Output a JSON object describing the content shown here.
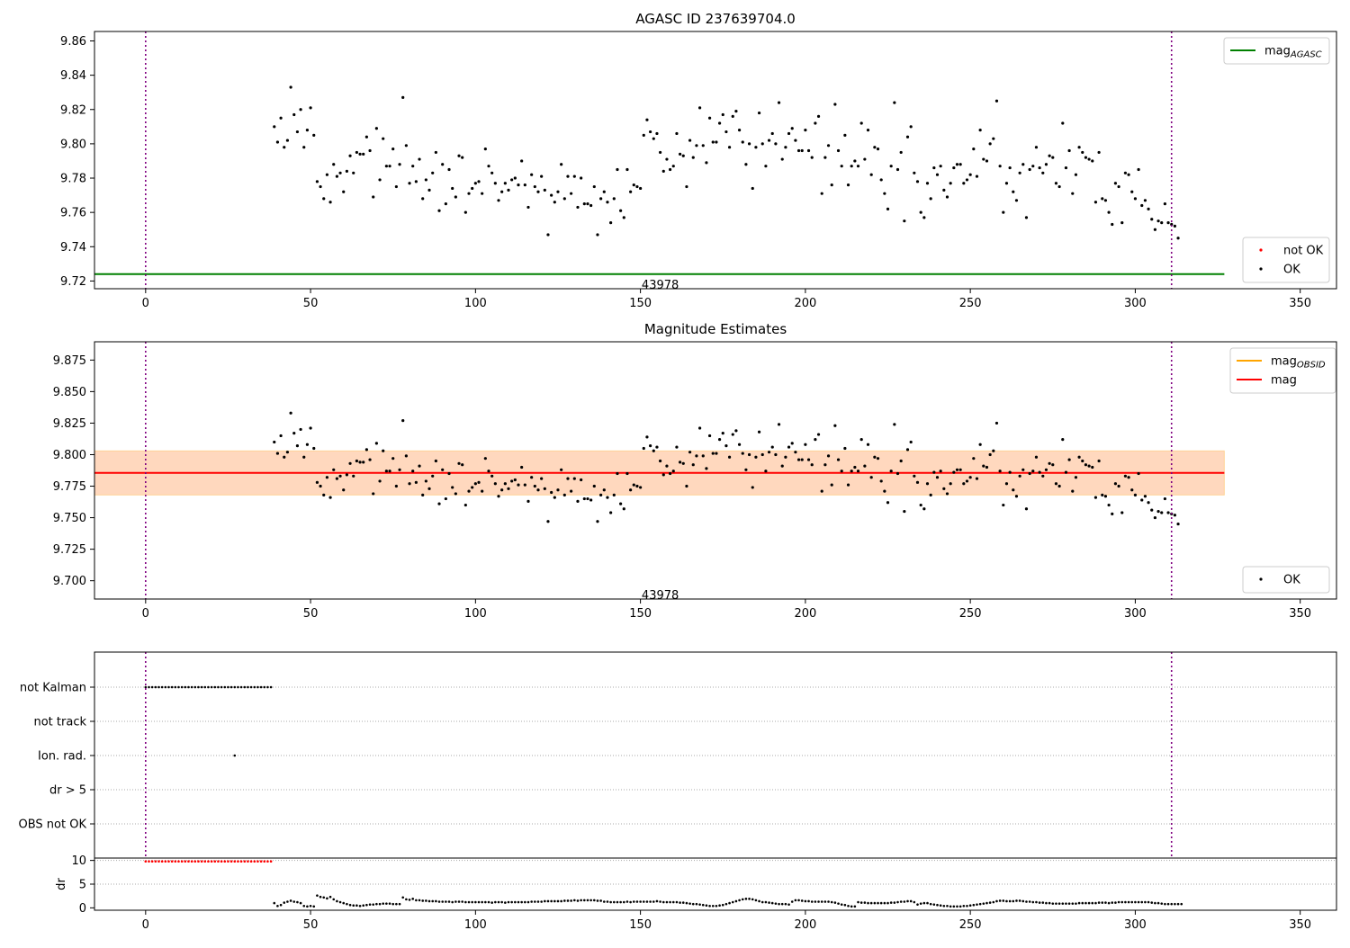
{
  "chart_data": [
    {
      "type": "scatter",
      "title": "AGASC ID 237639704.0",
      "xlim": [
        -15.5,
        361
      ],
      "ylim": [
        9.7155,
        9.8655
      ],
      "x_ticks": [
        0,
        50,
        100,
        150,
        200,
        250,
        300,
        350
      ],
      "y_ticks": [
        9.72,
        9.74,
        9.76,
        9.78,
        9.8,
        9.82,
        9.84,
        9.86
      ],
      "y_tick_decimals": 2,
      "vlines": [
        0,
        311
      ],
      "hlines": [
        {
          "y": 9.724,
          "x_range": [
            -15.5,
            327
          ],
          "color": "#008000"
        }
      ],
      "band": null,
      "annotation": {
        "text": "43978",
        "x": 156,
        "y": 9.7175
      },
      "legends": [
        {
          "position": "top-right",
          "entries": [
            {
              "label": "mag",
              "sub": "AGASC",
              "kind": "line",
              "color": "#008000"
            }
          ]
        },
        {
          "position": "bottom-right",
          "entries": [
            {
              "label": "not OK",
              "kind": "dot",
              "color": "#ff0000"
            },
            {
              "label": "OK",
              "kind": "dot",
              "color": "#000000"
            }
          ]
        }
      ],
      "series": [
        {
          "name": "OK",
          "color": "#000000",
          "x_start": 39,
          "x_end": 311,
          "y": [
            9.81,
            9.801,
            9.815,
            9.798,
            9.802,
            9.833,
            9.817,
            9.807,
            9.82,
            9.798,
            9.808,
            9.821,
            9.805,
            9.778,
            9.775,
            9.768,
            9.782,
            9.766,
            9.788,
            9.781,
            9.783,
            9.772,
            9.784,
            9.793,
            9.783,
            9.795,
            9.794,
            9.794,
            9.804,
            9.796,
            9.769,
            9.809,
            9.779,
            9.803,
            9.787,
            9.787,
            9.797,
            9.775,
            9.788,
            9.827,
            9.799,
            9.777,
            9.787,
            9.778,
            9.791,
            9.768,
            9.779,
            9.773,
            9.783,
            9.795,
            9.761,
            9.788,
            9.765,
            9.785,
            9.774,
            9.769,
            9.793,
            9.792,
            9.76,
            9.771,
            9.774,
            9.777,
            9.778,
            9.771,
            9.797,
            9.787,
            9.783,
            9.777,
            9.767,
            9.772,
            9.777,
            9.773,
            9.779,
            9.78,
            9.776,
            9.79,
            9.776,
            9.763,
            9.782,
            9.775,
            9.772,
            9.781,
            9.773,
            9.747,
            9.77,
            9.766,
            9.772,
            9.788,
            9.768,
            9.781,
            9.771,
            9.781,
            9.763,
            9.78,
            9.765,
            9.765,
            9.764,
            9.775,
            9.747,
            9.768,
            9.772,
            9.766,
            9.754,
            9.768,
            9.785,
            9.761,
            9.757,
            9.785,
            9.772,
            9.776,
            9.775,
            9.774,
            9.805,
            9.814,
            9.807,
            9.803,
            9.806,
            9.795,
            9.784,
            9.791,
            9.785,
            9.787,
            9.806,
            9.794,
            9.793,
            9.775,
            9.802,
            9.792,
            9.799,
            9.821,
            9.799,
            9.789,
            9.815,
            9.801,
            9.801,
            9.812,
            9.817,
            9.807,
            9.798,
            9.816,
            9.819,
            9.808,
            9.801,
            9.788,
            9.8,
            9.774,
            9.798,
            9.818,
            9.8,
            9.787,
            9.802,
            9.806,
            9.8,
            9.824,
            9.791,
            9.798,
            9.806,
            9.809,
            9.802,
            9.796,
            9.796,
            9.808,
            9.796,
            9.792,
            9.812,
            9.816,
            9.771,
            9.792,
            9.799,
            9.776,
            9.823,
            9.796,
            9.787,
            9.805,
            9.776,
            9.787,
            9.79,
            9.787,
            9.812,
            9.791,
            9.808,
            9.782,
            9.798,
            9.797,
            9.779,
            9.771,
            9.762,
            9.787,
            9.824,
            9.785,
            9.795,
            9.755,
            9.804,
            9.81,
            9.783,
            9.778,
            9.76,
            9.757,
            9.777,
            9.768,
            9.786,
            9.782,
            9.787,
            9.773,
            9.769,
            9.777,
            9.786,
            9.788,
            9.788,
            9.777,
            9.779,
            9.782,
            9.797,
            9.781,
            9.808,
            9.791,
            9.79,
            9.8,
            9.803,
            9.825,
            9.787,
            9.76,
            9.777,
            9.786,
            9.772,
            9.767,
            9.783,
            9.788,
            9.757,
            9.785,
            9.787,
            9.798,
            9.786,
            9.783,
            9.788,
            9.793,
            9.792,
            9.777,
            9.775,
            9.812,
            9.786,
            9.796,
            9.771,
            9.782,
            9.798,
            9.795,
            9.792,
            9.791,
            9.79,
            9.766,
            9.795,
            9.768,
            9.767,
            9.76,
            9.753,
            9.777,
            9.775,
            9.754,
            9.783,
            9.782,
            9.772,
            9.768,
            9.785,
            9.764,
            9.767,
            9.762,
            9.756,
            9.75,
            9.755,
            9.754,
            9.765,
            9.754,
            9.753,
            9.752,
            9.745
          ]
        }
      ]
    },
    {
      "type": "scatter",
      "title": "Magnitude Estimates",
      "xlim": [
        -15.5,
        361
      ],
      "ylim": [
        9.6855,
        9.8895
      ],
      "x_ticks": [
        0,
        50,
        100,
        150,
        200,
        250,
        300,
        350
      ],
      "y_ticks": [
        9.7,
        9.725,
        9.75,
        9.775,
        9.8,
        9.825,
        9.85,
        9.875
      ],
      "y_tick_decimals": 3,
      "vlines": [
        0,
        311
      ],
      "hlines": [
        {
          "y": 9.7855,
          "x_range": [
            -15.5,
            327
          ],
          "color": "#ff0000"
        }
      ],
      "band": {
        "y": [
          9.768,
          9.803
        ],
        "x_range": [
          -15.5,
          327
        ]
      },
      "annotation": {
        "text": "43978",
        "x": 156,
        "y": 9.6885
      },
      "legends": [
        {
          "position": "top-right",
          "entries": [
            {
              "label": "mag",
              "sub": "OBSID",
              "kind": "line",
              "color": "#ffa500"
            },
            {
              "label": "mag",
              "kind": "line",
              "color": "#ff0000"
            }
          ]
        },
        {
          "position": "bottom-right",
          "entries": [
            {
              "label": "OK",
              "kind": "dot",
              "color": "#000000"
            }
          ]
        }
      ],
      "series": [
        {
          "name": "OK",
          "color": "#000000",
          "x_start": 39,
          "x_end": 311,
          "y": [
            9.81,
            9.801,
            9.815,
            9.798,
            9.802,
            9.833,
            9.817,
            9.807,
            9.82,
            9.798,
            9.808,
            9.821,
            9.805,
            9.778,
            9.775,
            9.768,
            9.782,
            9.766,
            9.788,
            9.781,
            9.783,
            9.772,
            9.784,
            9.793,
            9.783,
            9.795,
            9.794,
            9.794,
            9.804,
            9.796,
            9.769,
            9.809,
            9.779,
            9.803,
            9.787,
            9.787,
            9.797,
            9.775,
            9.788,
            9.827,
            9.799,
            9.777,
            9.787,
            9.778,
            9.791,
            9.768,
            9.779,
            9.773,
            9.783,
            9.795,
            9.761,
            9.788,
            9.765,
            9.785,
            9.774,
            9.769,
            9.793,
            9.792,
            9.76,
            9.771,
            9.774,
            9.777,
            9.778,
            9.771,
            9.797,
            9.787,
            9.783,
            9.777,
            9.767,
            9.772,
            9.777,
            9.773,
            9.779,
            9.78,
            9.776,
            9.79,
            9.776,
            9.763,
            9.782,
            9.775,
            9.772,
            9.781,
            9.773,
            9.747,
            9.77,
            9.766,
            9.772,
            9.788,
            9.768,
            9.781,
            9.771,
            9.781,
            9.763,
            9.78,
            9.765,
            9.765,
            9.764,
            9.775,
            9.747,
            9.768,
            9.772,
            9.766,
            9.754,
            9.768,
            9.785,
            9.761,
            9.757,
            9.785,
            9.772,
            9.776,
            9.775,
            9.774,
            9.805,
            9.814,
            9.807,
            9.803,
            9.806,
            9.795,
            9.784,
            9.791,
            9.785,
            9.787,
            9.806,
            9.794,
            9.793,
            9.775,
            9.802,
            9.792,
            9.799,
            9.821,
            9.799,
            9.789,
            9.815,
            9.801,
            9.801,
            9.812,
            9.817,
            9.807,
            9.798,
            9.816,
            9.819,
            9.808,
            9.801,
            9.788,
            9.8,
            9.774,
            9.798,
            9.818,
            9.8,
            9.787,
            9.802,
            9.806,
            9.8,
            9.824,
            9.791,
            9.798,
            9.806,
            9.809,
            9.802,
            9.796,
            9.796,
            9.808,
            9.796,
            9.792,
            9.812,
            9.816,
            9.771,
            9.792,
            9.799,
            9.776,
            9.823,
            9.796,
            9.787,
            9.805,
            9.776,
            9.787,
            9.79,
            9.787,
            9.812,
            9.791,
            9.808,
            9.782,
            9.798,
            9.797,
            9.779,
            9.771,
            9.762,
            9.787,
            9.824,
            9.785,
            9.795,
            9.755,
            9.804,
            9.81,
            9.783,
            9.778,
            9.76,
            9.757,
            9.777,
            9.768,
            9.786,
            9.782,
            9.787,
            9.773,
            9.769,
            9.777,
            9.786,
            9.788,
            9.788,
            9.777,
            9.779,
            9.782,
            9.797,
            9.781,
            9.808,
            9.791,
            9.79,
            9.8,
            9.803,
            9.825,
            9.787,
            9.76,
            9.777,
            9.786,
            9.772,
            9.767,
            9.783,
            9.788,
            9.757,
            9.785,
            9.787,
            9.798,
            9.786,
            9.783,
            9.788,
            9.793,
            9.792,
            9.777,
            9.775,
            9.812,
            9.786,
            9.796,
            9.771,
            9.782,
            9.798,
            9.795,
            9.792,
            9.791,
            9.79,
            9.766,
            9.795,
            9.768,
            9.767,
            9.76,
            9.753,
            9.777,
            9.775,
            9.754,
            9.783,
            9.782,
            9.772,
            9.768,
            9.785,
            9.764,
            9.767,
            9.762,
            9.756,
            9.75,
            9.755,
            9.754,
            9.765,
            9.754,
            9.753,
            9.752,
            9.745
          ]
        }
      ]
    },
    {
      "type": "scatter",
      "xlim": [
        -15.5,
        361
      ],
      "x_ticks": [
        0,
        50,
        100,
        150,
        200,
        250,
        300,
        350
      ],
      "vlines": [
        0,
        311
      ],
      "categories": [
        "not Kalman",
        "not track",
        "Ion. rad.",
        "dr > 5",
        "OBS not OK"
      ],
      "flags": [
        {
          "category": "not Kalman",
          "x_start": 0,
          "x_end": 38
        },
        {
          "category": "Ion. rad.",
          "points": [
            27
          ]
        }
      ]
    },
    {
      "type": "scatter",
      "ylabel": "dr",
      "xlim": [
        -15.5,
        361
      ],
      "ylim": [
        -0.5,
        10.5
      ],
      "x_ticks": [
        0,
        50,
        100,
        150,
        200,
        250,
        300,
        350
      ],
      "y_ticks": [
        0,
        5,
        10
      ],
      "not_ok": {
        "color": "#ff0000",
        "x_start": 0,
        "x_end": 38,
        "y": 9.8
      },
      "series": [
        {
          "name": "OK",
          "color": "#000000",
          "x_start": 39,
          "x_end": 311,
          "y": [
            1.0,
            0.4,
            0.6,
            1.1,
            1.3,
            1.5,
            1.3,
            1.2,
            1.0,
            0.4,
            0.3,
            0.4,
            0.3,
            2.6,
            2.3,
            2.2,
            2.0,
            2.3,
            1.8,
            1.4,
            1.2,
            1.0,
            0.8,
            0.6,
            0.5,
            0.5,
            0.4,
            0.5,
            0.6,
            0.7,
            0.7,
            0.8,
            0.8,
            0.9,
            0.9,
            0.9,
            0.8,
            0.8,
            0.8,
            2.2,
            1.8,
            1.7,
            1.9,
            1.6,
            1.6,
            1.5,
            1.5,
            1.4,
            1.4,
            1.4,
            1.3,
            1.3,
            1.3,
            1.3,
            1.2,
            1.3,
            1.3,
            1.3,
            1.2,
            1.2,
            1.2,
            1.2,
            1.2,
            1.2,
            1.2,
            1.2,
            1.1,
            1.2,
            1.2,
            1.2,
            1.1,
            1.2,
            1.2,
            1.2,
            1.2,
            1.2,
            1.2,
            1.2,
            1.3,
            1.3,
            1.3,
            1.3,
            1.4,
            1.4,
            1.4,
            1.4,
            1.4,
            1.4,
            1.5,
            1.5,
            1.5,
            1.6,
            1.5,
            1.6,
            1.6,
            1.6,
            1.6,
            1.6,
            1.5,
            1.5,
            1.3,
            1.3,
            1.2,
            1.2,
            1.2,
            1.2,
            1.2,
            1.3,
            1.2,
            1.3,
            1.3,
            1.3,
            1.3,
            1.3,
            1.3,
            1.3,
            1.4,
            1.3,
            1.2,
            1.2,
            1.2,
            1.2,
            1.2,
            1.1,
            1.1,
            1.0,
            0.9,
            0.8,
            0.8,
            0.7,
            0.6,
            0.5,
            0.4,
            0.4,
            0.4,
            0.5,
            0.6,
            0.8,
            1.0,
            1.2,
            1.4,
            1.6,
            1.8,
            1.9,
            1.9,
            1.8,
            1.6,
            1.4,
            1.2,
            1.2,
            1.1,
            1.0,
            0.9,
            0.8,
            0.8,
            0.8,
            0.7,
            1.3,
            1.6,
            1.6,
            1.5,
            1.4,
            1.4,
            1.3,
            1.3,
            1.3,
            1.3,
            1.3,
            1.3,
            1.2,
            1.1,
            0.9,
            0.7,
            0.6,
            0.4,
            0.3,
            0.3,
            1.2,
            1.1,
            1.1,
            1.0,
            1.0,
            1.0,
            1.0,
            1.0,
            1.0,
            1.0,
            1.1,
            1.1,
            1.2,
            1.3,
            1.3,
            1.4,
            1.4,
            1.2,
            0.7,
            0.9,
            1.0,
            1.0,
            0.8,
            0.7,
            0.6,
            0.5,
            0.4,
            0.4,
            0.3,
            0.3,
            0.3,
            0.3,
            0.4,
            0.4,
            0.5,
            0.6,
            0.7,
            0.8,
            0.9,
            1.0,
            1.1,
            1.2,
            1.4,
            1.5,
            1.5,
            1.4,
            1.4,
            1.4,
            1.5,
            1.5,
            1.4,
            1.3,
            1.3,
            1.2,
            1.2,
            1.1,
            1.1,
            1.0,
            1.0,
            0.9,
            0.9,
            0.9,
            0.9,
            0.9,
            0.9,
            0.9,
            0.9,
            1.0,
            1.0,
            1.0,
            1.0,
            1.0,
            1.0,
            1.1,
            1.1,
            1.1,
            1.0,
            1.1,
            1.1,
            1.2,
            1.2,
            1.2,
            1.2,
            1.2,
            1.2,
            1.2,
            1.2,
            1.2,
            1.2,
            1.1,
            1.0,
            1.0,
            0.9,
            0.8,
            0.8,
            0.8,
            0.8,
            0.8,
            0.8
          ]
        }
      ]
    }
  ]
}
